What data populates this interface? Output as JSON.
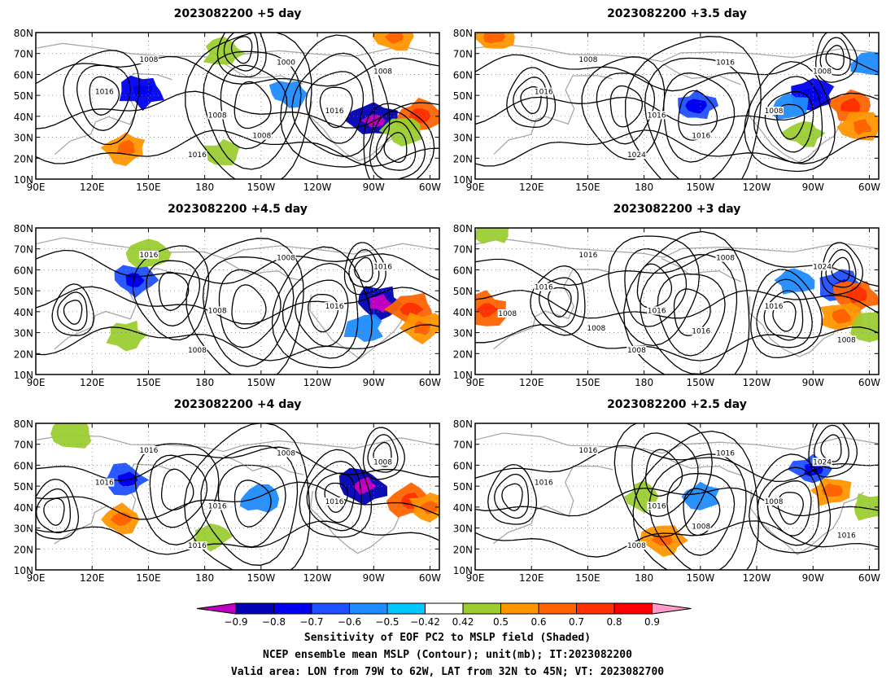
{
  "panels": [
    {
      "title": "2023082200 +5 day",
      "contour_labels": [
        "1008",
        "1000",
        "1008",
        "1016",
        "1016",
        "1008",
        "1016",
        "1008"
      ],
      "shading": [
        {
          "lon": 147,
          "lat": 52,
          "value": -0.7
        },
        {
          "lon": 270,
          "lat": 38,
          "value": -0.8
        },
        {
          "lon": 294,
          "lat": 40,
          "value": 0.7
        },
        {
          "lon": 285,
          "lat": 33,
          "value": 0.5
        },
        {
          "lon": 225,
          "lat": 51,
          "value": -0.5
        },
        {
          "lon": 138,
          "lat": 25,
          "value": 0.6
        },
        {
          "lon": 190,
          "lat": 22,
          "value": 0.5
        },
        {
          "lon": 190,
          "lat": 70,
          "value": 0.5
        },
        {
          "lon": 282,
          "lat": 78,
          "value": 0.6
        }
      ]
    },
    {
      "title": "2023082200 +3.5 day",
      "contour_labels": [
        "1008",
        "1016",
        "1016",
        "1008",
        "1024",
        "1008",
        "1016",
        "1016"
      ],
      "shading": [
        {
          "lon": 270,
          "lat": 50,
          "value": -0.7
        },
        {
          "lon": 257,
          "lat": 45,
          "value": -0.5
        },
        {
          "lon": 208,
          "lat": 45,
          "value": -0.6
        },
        {
          "lon": 290,
          "lat": 45,
          "value": 0.7
        },
        {
          "lon": 296,
          "lat": 35,
          "value": 0.6
        },
        {
          "lon": 100,
          "lat": 78,
          "value": 0.6
        },
        {
          "lon": 300,
          "lat": 65,
          "value": -0.5
        },
        {
          "lon": 265,
          "lat": 32,
          "value": 0.5
        }
      ]
    },
    {
      "title": "2023082200 +4.5 day",
      "contour_labels": [
        "1016",
        "1008",
        "1008",
        "1016",
        "1008",
        "1016"
      ],
      "shading": [
        {
          "lon": 143,
          "lat": 55,
          "value": -0.6
        },
        {
          "lon": 273,
          "lat": 44,
          "value": -0.8
        },
        {
          "lon": 290,
          "lat": 41,
          "value": 0.7
        },
        {
          "lon": 296,
          "lat": 32,
          "value": 0.6
        },
        {
          "lon": 150,
          "lat": 68,
          "value": 0.5
        },
        {
          "lon": 265,
          "lat": 32,
          "value": -0.5
        },
        {
          "lon": 138,
          "lat": 29,
          "value": 0.5
        }
      ]
    },
    {
      "title": "2023082200 +3 day",
      "contour_labels": [
        "1016",
        "1008",
        "1016",
        "1016",
        "1008",
        "1024",
        "1016",
        "1016",
        "1008",
        "1008",
        "1008"
      ],
      "shading": [
        {
          "lon": 285,
          "lat": 52,
          "value": -0.6
        },
        {
          "lon": 293,
          "lat": 48,
          "value": 0.7
        },
        {
          "lon": 285,
          "lat": 38,
          "value": 0.6
        },
        {
          "lon": 96,
          "lat": 41,
          "value": 0.7
        },
        {
          "lon": 100,
          "lat": 79,
          "value": 0.5
        },
        {
          "lon": 300,
          "lat": 33,
          "value": 0.5
        },
        {
          "lon": 260,
          "lat": 55,
          "value": -0.5
        }
      ]
    },
    {
      "title": "2023082200 +4 day",
      "contour_labels": [
        "1016",
        "1008",
        "1016",
        "1016",
        "1016",
        "1008",
        "1016"
      ],
      "shading": [
        {
          "lon": 265,
          "lat": 50,
          "value": -0.8
        },
        {
          "lon": 290,
          "lat": 43,
          "value": 0.7
        },
        {
          "lon": 138,
          "lat": 53,
          "value": -0.6
        },
        {
          "lon": 136,
          "lat": 34,
          "value": 0.6
        },
        {
          "lon": 110,
          "lat": 75,
          "value": 0.5
        },
        {
          "lon": 208,
          "lat": 44,
          "value": -0.5
        },
        {
          "lon": 300,
          "lat": 40,
          "value": 0.6
        },
        {
          "lon": 183,
          "lat": 26,
          "value": 0.5
        }
      ]
    },
    {
      "title": "2023082200 +2.5 day",
      "contour_labels": [
        "1016",
        "1016",
        "1016",
        "1008",
        "1008",
        "1024",
        "1016",
        "1008",
        "1016"
      ],
      "shading": [
        {
          "lon": 280,
          "lat": 48,
          "value": 0.6
        },
        {
          "lon": 270,
          "lat": 58,
          "value": -0.6
        },
        {
          "lon": 190,
          "lat": 24,
          "value": 0.6
        },
        {
          "lon": 210,
          "lat": 45,
          "value": -0.5
        },
        {
          "lon": 300,
          "lat": 40,
          "value": 0.5
        },
        {
          "lon": 180,
          "lat": 45,
          "value": 0.5
        }
      ]
    }
  ],
  "axes": {
    "lat_ticks": [
      "80N",
      "70N",
      "60N",
      "50N",
      "40N",
      "30N",
      "20N",
      "10N"
    ],
    "lon_ticks": [
      "90E",
      "120E",
      "150E",
      "180",
      "150W",
      "120W",
      "90W",
      "60W"
    ]
  },
  "colorbar": {
    "labels": [
      "−0.9",
      "−0.8",
      "−0.7",
      "−0.6",
      "−0.5",
      "−0.42",
      "0.42",
      "0.5",
      "0.6",
      "0.7",
      "0.8",
      "0.9"
    ],
    "colors": [
      "#c000c0",
      "#0000b4",
      "#0000f0",
      "#1e50ff",
      "#1e8cff",
      "#00c8ff",
      "#ffffff",
      "#9bcd32",
      "#ff9600",
      "#ff6400",
      "#ff3200",
      "#ff0000",
      "#ff9bc8"
    ]
  },
  "caption": {
    "line1": "Sensitivity of EOF PC2 to MSLP field (Shaded)",
    "line2": "NCEP ensemble mean MSLP (Contour); unit(mb); IT:2023082200",
    "line3": "Valid area: LON from 79W to 62W, LAT from 32N to 45N; VT: 2023082700"
  },
  "colors": {
    "contour": "#000000",
    "coastline": "#a8a8a8",
    "grid": "#888888"
  }
}
